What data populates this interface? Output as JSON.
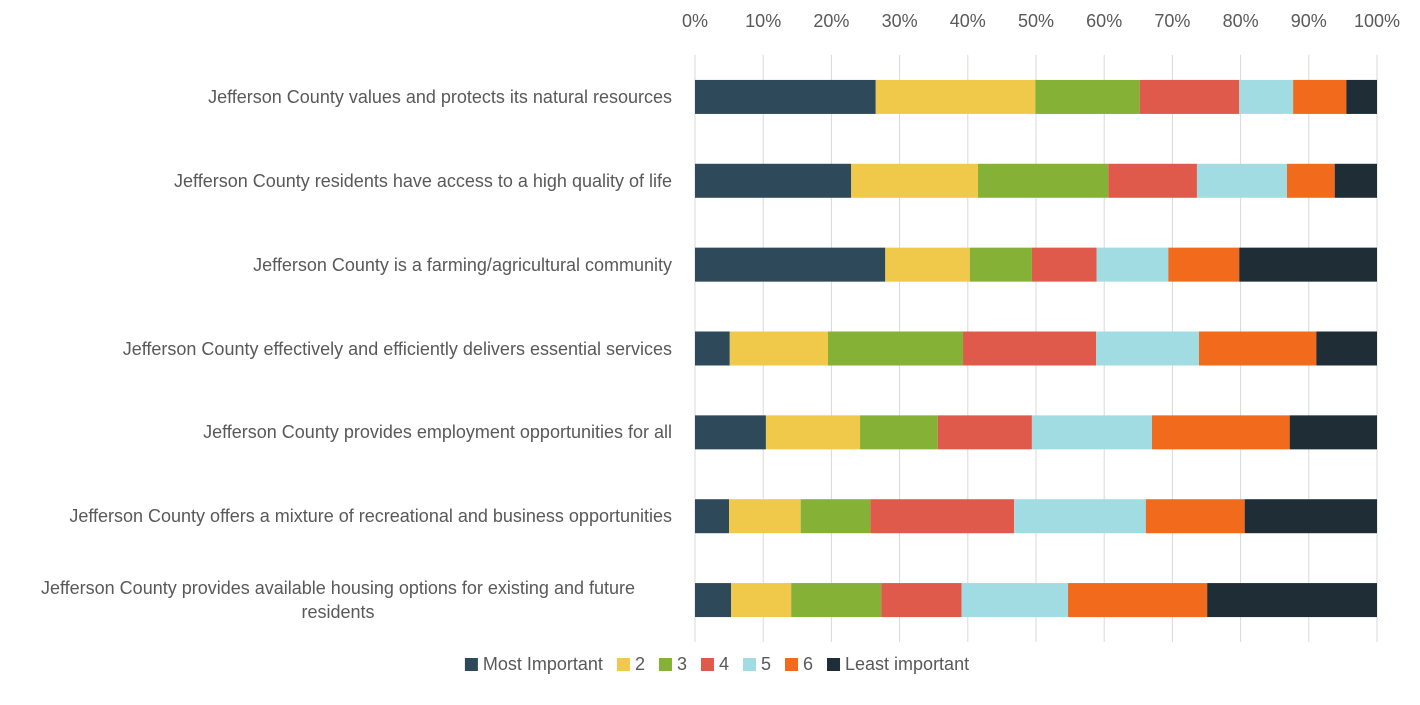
{
  "chart_data": {
    "type": "stacked-barh",
    "categories": [
      "Jefferson County values and protects its natural resources",
      "Jefferson County residents have access to a high quality of life",
      "Jefferson County is a farming/agricultural community",
      "Jefferson County effectively and efficiently delivers essential services",
      "Jefferson County provides employment opportunities for all",
      "Jefferson County offers a mixture of recreational and business opportunities",
      "Jefferson County provides available housing options for existing and future residents"
    ],
    "series": [
      {
        "name": "Most Important",
        "color": "#2e4a5a",
        "values": [
          26.5,
          22.9,
          27.9,
          5.1,
          10.4,
          5.0,
          5.3
        ]
      },
      {
        "name": "2",
        "color": "#f0c94a",
        "values": [
          23.4,
          18.6,
          12.4,
          14.4,
          13.8,
          10.5,
          8.8
        ]
      },
      {
        "name": "3",
        "color": "#84b136",
        "values": [
          15.3,
          19.1,
          9.1,
          19.8,
          11.4,
          10.2,
          13.2
        ]
      },
      {
        "name": "4",
        "color": "#e05a4b",
        "values": [
          14.6,
          13.0,
          9.5,
          19.5,
          13.8,
          21.1,
          11.8
        ]
      },
      {
        "name": "5",
        "color": "#a2dce3",
        "values": [
          7.9,
          13.2,
          10.5,
          15.1,
          17.6,
          19.3,
          15.6
        ]
      },
      {
        "name": "6",
        "color": "#f26b1d",
        "values": [
          7.8,
          7.0,
          10.4,
          17.2,
          20.2,
          14.5,
          20.4
        ]
      },
      {
        "name": "Least important",
        "color": "#1f2d36",
        "values": [
          4.5,
          6.2,
          20.2,
          8.9,
          12.8,
          19.4,
          24.9
        ]
      }
    ],
    "xlim": [
      0,
      100
    ],
    "xticks": [
      {
        "value": 0,
        "label": "0%"
      },
      {
        "value": 10,
        "label": "10%"
      },
      {
        "value": 20,
        "label": "20%"
      },
      {
        "value": 30,
        "label": "30%"
      },
      {
        "value": 40,
        "label": "40%"
      },
      {
        "value": 50,
        "label": "50%"
      },
      {
        "value": 60,
        "label": "60%"
      },
      {
        "value": 70,
        "label": "70%"
      },
      {
        "value": 80,
        "label": "80%"
      },
      {
        "value": 90,
        "label": "90%"
      },
      {
        "value": 100,
        "label": "100%"
      }
    ],
    "grid": true,
    "legend": "bottom"
  }
}
